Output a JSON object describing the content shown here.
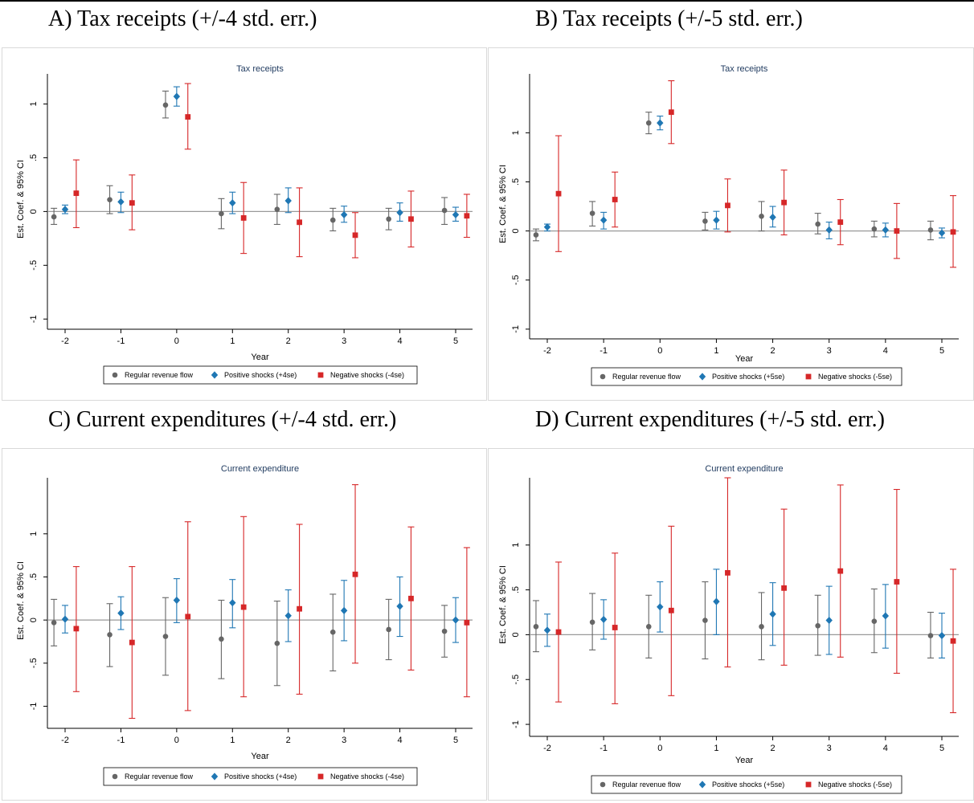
{
  "captions": {
    "a": "A) Tax receipts (+/-4 std. err.)",
    "b": "B) Tax receipts (+/-5 std. err.)",
    "c": "C)  Current expenditures (+/-4 std. err.)",
    "d": "D) Current expenditures (+/-5 std. err.)"
  },
  "colors": {
    "regular": "#666666",
    "positive": "#1f77b4",
    "negative": "#d62728",
    "zero_line": "#999999",
    "title": "#1f3a5f"
  },
  "chart_data": [
    {
      "id": "a",
      "type": "scatter",
      "title": "Tax receipts",
      "xlabel": "Year",
      "ylabel": "Est. Coef. & 95% CI",
      "x_ticks": [
        "-2",
        "-1",
        "0",
        "1",
        "2",
        "3",
        "4",
        "5"
      ],
      "y_ticks": [
        -1,
        -0.5,
        0,
        0.5,
        1
      ],
      "y_tick_labels": [
        "-1",
        "-.5",
        "0",
        ".5",
        "1"
      ],
      "ylim": [
        -1.05,
        1.28
      ],
      "legend": [
        "Regular revenue flow",
        "Positive shocks (+4se)",
        "Negative shocks (-4se)"
      ],
      "legend_position": "bottom",
      "series": [
        {
          "name": "Regular revenue flow",
          "marker": "circle",
          "points": [
            {
              "x": -2,
              "y": -0.05,
              "lo": -0.12,
              "hi": 0.03
            },
            {
              "x": -1,
              "y": 0.11,
              "lo": -0.02,
              "hi": 0.24
            },
            {
              "x": 0,
              "y": 0.99,
              "lo": 0.87,
              "hi": 1.12
            },
            {
              "x": 1,
              "y": -0.02,
              "lo": -0.16,
              "hi": 0.12
            },
            {
              "x": 2,
              "y": 0.02,
              "lo": -0.12,
              "hi": 0.16
            },
            {
              "x": 3,
              "y": -0.08,
              "lo": -0.18,
              "hi": 0.03
            },
            {
              "x": 4,
              "y": -0.07,
              "lo": -0.17,
              "hi": 0.03
            },
            {
              "x": 5,
              "y": 0.01,
              "lo": -0.12,
              "hi": 0.13
            }
          ]
        },
        {
          "name": "Positive shocks (+4se)",
          "marker": "diamond",
          "points": [
            {
              "x": -2,
              "y": 0.02,
              "lo": -0.02,
              "hi": 0.06
            },
            {
              "x": -1,
              "y": 0.09,
              "lo": -0.01,
              "hi": 0.18
            },
            {
              "x": 0,
              "y": 1.07,
              "lo": 0.98,
              "hi": 1.16
            },
            {
              "x": 1,
              "y": 0.08,
              "lo": -0.02,
              "hi": 0.18
            },
            {
              "x": 2,
              "y": 0.1,
              "lo": -0.01,
              "hi": 0.22
            },
            {
              "x": 3,
              "y": -0.03,
              "lo": -0.1,
              "hi": 0.05
            },
            {
              "x": 4,
              "y": -0.01,
              "lo": -0.09,
              "hi": 0.08
            },
            {
              "x": 5,
              "y": -0.03,
              "lo": -0.09,
              "hi": 0.04
            }
          ]
        },
        {
          "name": "Negative shocks (-4se)",
          "marker": "square",
          "points": [
            {
              "x": -2,
              "y": 0.17,
              "lo": -0.15,
              "hi": 0.48
            },
            {
              "x": -1,
              "y": 0.08,
              "lo": -0.17,
              "hi": 0.34
            },
            {
              "x": 0,
              "y": 0.88,
              "lo": 0.58,
              "hi": 1.19
            },
            {
              "x": 1,
              "y": -0.06,
              "lo": -0.39,
              "hi": 0.27
            },
            {
              "x": 2,
              "y": -0.1,
              "lo": -0.42,
              "hi": 0.22
            },
            {
              "x": 3,
              "y": -0.22,
              "lo": -0.43,
              "hi": -0.01
            },
            {
              "x": 4,
              "y": -0.07,
              "lo": -0.33,
              "hi": 0.19
            },
            {
              "x": 5,
              "y": -0.04,
              "lo": -0.24,
              "hi": 0.16
            }
          ]
        }
      ]
    },
    {
      "id": "b",
      "type": "scatter",
      "title": "Tax receipts",
      "xlabel": "Year",
      "ylabel": "Est. Coef. & 95% CI",
      "x_ticks": [
        "-2",
        "-1",
        "0",
        "1",
        "2",
        "3",
        "4",
        "5"
      ],
      "y_ticks": [
        -1,
        -0.5,
        0,
        0.5,
        1
      ],
      "y_tick_labels": [
        "-1",
        "-.5",
        "0",
        ".5",
        "1"
      ],
      "ylim": [
        -1.05,
        1.6
      ],
      "legend": [
        "Regular revenue flow",
        "Positive shocks (+5se)",
        "Negative shocks (-5se)"
      ],
      "legend_position": "bottom",
      "series": [
        {
          "name": "Regular revenue flow",
          "marker": "circle",
          "points": [
            {
              "x": -2,
              "y": -0.04,
              "lo": -0.1,
              "hi": 0.02
            },
            {
              "x": -1,
              "y": 0.18,
              "lo": 0.05,
              "hi": 0.3
            },
            {
              "x": 0,
              "y": 1.1,
              "lo": 0.99,
              "hi": 1.21
            },
            {
              "x": 1,
              "y": 0.1,
              "lo": 0.01,
              "hi": 0.19
            },
            {
              "x": 2,
              "y": 0.15,
              "lo": 0.0,
              "hi": 0.3
            },
            {
              "x": 3,
              "y": 0.07,
              "lo": -0.03,
              "hi": 0.18
            },
            {
              "x": 4,
              "y": 0.02,
              "lo": -0.06,
              "hi": 0.1
            },
            {
              "x": 5,
              "y": 0.01,
              "lo": -0.09,
              "hi": 0.1
            }
          ]
        },
        {
          "name": "Positive shocks (+5se)",
          "marker": "diamond",
          "points": [
            {
              "x": -2,
              "y": 0.04,
              "lo": 0.0,
              "hi": 0.07
            },
            {
              "x": -1,
              "y": 0.11,
              "lo": 0.02,
              "hi": 0.19
            },
            {
              "x": 0,
              "y": 1.1,
              "lo": 1.03,
              "hi": 1.17
            },
            {
              "x": 1,
              "y": 0.11,
              "lo": 0.02,
              "hi": 0.2
            },
            {
              "x": 2,
              "y": 0.14,
              "lo": 0.04,
              "hi": 0.25
            },
            {
              "x": 3,
              "y": 0.01,
              "lo": -0.08,
              "hi": 0.09
            },
            {
              "x": 4,
              "y": 0.01,
              "lo": -0.06,
              "hi": 0.08
            },
            {
              "x": 5,
              "y": -0.02,
              "lo": -0.07,
              "hi": 0.03
            }
          ]
        },
        {
          "name": "Negative shocks (-5se)",
          "marker": "square",
          "points": [
            {
              "x": -2,
              "y": 0.38,
              "lo": -0.21,
              "hi": 0.97
            },
            {
              "x": -1,
              "y": 0.32,
              "lo": 0.04,
              "hi": 0.6
            },
            {
              "x": 0,
              "y": 1.21,
              "lo": 0.89,
              "hi": 1.53
            },
            {
              "x": 1,
              "y": 0.26,
              "lo": -0.01,
              "hi": 0.53
            },
            {
              "x": 2,
              "y": 0.29,
              "lo": -0.04,
              "hi": 0.62
            },
            {
              "x": 3,
              "y": 0.09,
              "lo": -0.14,
              "hi": 0.32
            },
            {
              "x": 4,
              "y": 0.0,
              "lo": -0.28,
              "hi": 0.28
            },
            {
              "x": 5,
              "y": -0.01,
              "lo": -0.37,
              "hi": 0.36
            }
          ]
        }
      ]
    },
    {
      "id": "c",
      "type": "scatter",
      "title": "Current expenditure",
      "xlabel": "Year",
      "ylabel": "Est. Coef. & 95% CI",
      "x_ticks": [
        "-2",
        "-1",
        "0",
        "1",
        "2",
        "3",
        "4",
        "5"
      ],
      "y_ticks": [
        -1,
        -0.5,
        0,
        0.5,
        1
      ],
      "y_tick_labels": [
        "-1",
        "-.5",
        "0",
        ".5",
        "1"
      ],
      "ylim": [
        -1.2,
        1.65
      ],
      "legend": [
        "Regular revenue flow",
        "Positive shocks (+4se)",
        "Negative shocks (-4se)"
      ],
      "legend_position": "bottom",
      "series": [
        {
          "name": "Regular revenue flow",
          "marker": "circle",
          "points": [
            {
              "x": -2,
              "y": -0.03,
              "lo": -0.3,
              "hi": 0.24
            },
            {
              "x": -1,
              "y": -0.17,
              "lo": -0.54,
              "hi": 0.19
            },
            {
              "x": 0,
              "y": -0.19,
              "lo": -0.64,
              "hi": 0.26
            },
            {
              "x": 1,
              "y": -0.22,
              "lo": -0.68,
              "hi": 0.23
            },
            {
              "x": 2,
              "y": -0.27,
              "lo": -0.76,
              "hi": 0.22
            },
            {
              "x": 3,
              "y": -0.14,
              "lo": -0.59,
              "hi": 0.3
            },
            {
              "x": 4,
              "y": -0.11,
              "lo": -0.46,
              "hi": 0.24
            },
            {
              "x": 5,
              "y": -0.13,
              "lo": -0.43,
              "hi": 0.17
            }
          ]
        },
        {
          "name": "Positive shocks (+4se)",
          "marker": "diamond",
          "points": [
            {
              "x": -2,
              "y": 0.01,
              "lo": -0.15,
              "hi": 0.17
            },
            {
              "x": -1,
              "y": 0.08,
              "lo": -0.11,
              "hi": 0.27
            },
            {
              "x": 0,
              "y": 0.23,
              "lo": -0.03,
              "hi": 0.48
            },
            {
              "x": 1,
              "y": 0.2,
              "lo": -0.09,
              "hi": 0.47
            },
            {
              "x": 2,
              "y": 0.05,
              "lo": -0.25,
              "hi": 0.35
            },
            {
              "x": 3,
              "y": 0.11,
              "lo": -0.24,
              "hi": 0.46
            },
            {
              "x": 4,
              "y": 0.16,
              "lo": -0.19,
              "hi": 0.5
            },
            {
              "x": 5,
              "y": 0.0,
              "lo": -0.26,
              "hi": 0.26
            }
          ]
        },
        {
          "name": "Negative shocks (-4se)",
          "marker": "square",
          "points": [
            {
              "x": -2,
              "y": -0.1,
              "lo": -0.83,
              "hi": 0.62
            },
            {
              "x": -1,
              "y": -0.26,
              "lo": -1.14,
              "hi": 0.62
            },
            {
              "x": 0,
              "y": 0.04,
              "lo": -1.05,
              "hi": 1.14
            },
            {
              "x": 1,
              "y": 0.15,
              "lo": -0.89,
              "hi": 1.2
            },
            {
              "x": 2,
              "y": 0.13,
              "lo": -0.86,
              "hi": 1.11
            },
            {
              "x": 3,
              "y": 0.53,
              "lo": -0.5,
              "hi": 1.57
            },
            {
              "x": 4,
              "y": 0.25,
              "lo": -0.58,
              "hi": 1.08
            },
            {
              "x": 5,
              "y": -0.03,
              "lo": -0.89,
              "hi": 0.84
            }
          ]
        }
      ]
    },
    {
      "id": "d",
      "type": "scatter",
      "title": "Current expenditure",
      "xlabel": "Year",
      "ylabel": "Est. Coef. & 95% CI",
      "x_ticks": [
        "-2",
        "-1",
        "0",
        "1",
        "2",
        "3",
        "4",
        "5"
      ],
      "y_ticks": [
        -1,
        -0.5,
        0,
        0.5,
        1
      ],
      "y_tick_labels": [
        "-1",
        "-.5",
        "0",
        ".5",
        "1"
      ],
      "ylim": [
        -1.08,
        1.75
      ],
      "legend": [
        "Regular revenue flow",
        "Positive shocks (+5se)",
        "Negative shocks (-5se)"
      ],
      "legend_position": "bottom",
      "series": [
        {
          "name": "Regular revenue flow",
          "marker": "circle",
          "points": [
            {
              "x": -2,
              "y": 0.09,
              "lo": -0.19,
              "hi": 0.38
            },
            {
              "x": -1,
              "y": 0.14,
              "lo": -0.17,
              "hi": 0.46
            },
            {
              "x": 0,
              "y": 0.09,
              "lo": -0.26,
              "hi": 0.44
            },
            {
              "x": 1,
              "y": 0.16,
              "lo": -0.27,
              "hi": 0.59
            },
            {
              "x": 2,
              "y": 0.09,
              "lo": -0.28,
              "hi": 0.47
            },
            {
              "x": 3,
              "y": 0.1,
              "lo": -0.23,
              "hi": 0.44
            },
            {
              "x": 4,
              "y": 0.15,
              "lo": -0.2,
              "hi": 0.51
            },
            {
              "x": 5,
              "y": -0.01,
              "lo": -0.26,
              "hi": 0.25
            }
          ]
        },
        {
          "name": "Positive shocks (+5se)",
          "marker": "diamond",
          "points": [
            {
              "x": -2,
              "y": 0.05,
              "lo": -0.13,
              "hi": 0.23
            },
            {
              "x": -1,
              "y": 0.17,
              "lo": -0.05,
              "hi": 0.39
            },
            {
              "x": 0,
              "y": 0.31,
              "lo": 0.03,
              "hi": 0.59
            },
            {
              "x": 1,
              "y": 0.37,
              "lo": 0.0,
              "hi": 0.73
            },
            {
              "x": 2,
              "y": 0.23,
              "lo": -0.12,
              "hi": 0.58
            },
            {
              "x": 3,
              "y": 0.16,
              "lo": -0.22,
              "hi": 0.54
            },
            {
              "x": 4,
              "y": 0.21,
              "lo": -0.15,
              "hi": 0.56
            },
            {
              "x": 5,
              "y": -0.01,
              "lo": -0.26,
              "hi": 0.24
            }
          ]
        },
        {
          "name": "Negative shocks (-5se)",
          "marker": "square",
          "points": [
            {
              "x": -2,
              "y": 0.03,
              "lo": -0.75,
              "hi": 0.81
            },
            {
              "x": -1,
              "y": 0.08,
              "lo": -0.77,
              "hi": 0.91
            },
            {
              "x": 0,
              "y": 0.27,
              "lo": -0.68,
              "hi": 1.21
            },
            {
              "x": 1,
              "y": 0.69,
              "lo": -0.36,
              "hi": 1.75
            },
            {
              "x": 2,
              "y": 0.52,
              "lo": -0.34,
              "hi": 1.4
            },
            {
              "x": 3,
              "y": 0.71,
              "lo": -0.25,
              "hi": 1.67
            },
            {
              "x": 4,
              "y": 0.59,
              "lo": -0.43,
              "hi": 1.62
            },
            {
              "x": 5,
              "y": -0.07,
              "lo": -0.87,
              "hi": 0.73
            }
          ]
        }
      ]
    }
  ]
}
